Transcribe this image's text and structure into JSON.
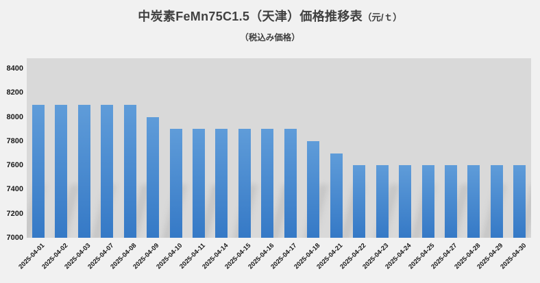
{
  "title": {
    "main": "中炭素FeMn75C1.5（天津）価格推移表",
    "unit": "（元/ｔ）"
  },
  "subtitle": "（税込み価格）",
  "colors": {
    "page_bg": "#f1f1f1",
    "plot_bg": "#d9d9d9",
    "bar_top": "#5f9cd9",
    "bar_bottom": "#3579c6",
    "title_text": "#404040",
    "axis_text": "#1a1a1a"
  },
  "chart_data": {
    "type": "bar",
    "title": "中炭素FeMn75C1.5（天津）価格推移表（元/ｔ）",
    "subtitle": "（税込み価格）",
    "categories": [
      "2025-04-01",
      "2025-04-02",
      "2025-04-03",
      "2025-04-07",
      "2025-04-08",
      "2025-04-09",
      "2025-04-10",
      "2025-04-11",
      "2025-04-14",
      "2025-04-15",
      "2025-04-16",
      "2025-04-17",
      "2025-04-18",
      "2025-04-21",
      "2025-04-22",
      "2025-04-23",
      "2025-04-24",
      "2025-04-25",
      "2025-04-27",
      "2025-04-28",
      "2025-04-29",
      "2025-04-30"
    ],
    "values": [
      8100,
      8100,
      8100,
      8100,
      8100,
      8000,
      7900,
      7900,
      7900,
      7900,
      7900,
      7900,
      7800,
      7700,
      7600,
      7600,
      7600,
      7600,
      7600,
      7600,
      7600,
      7600
    ],
    "xlabel": "",
    "ylabel": "",
    "ylim": [
      7000,
      8485
    ],
    "yticks": [
      8400,
      8200,
      8000,
      7800,
      7600,
      7400,
      7200,
      7000
    ],
    "grid": false,
    "legend": false,
    "bar_color": "#4a8ccf"
  }
}
